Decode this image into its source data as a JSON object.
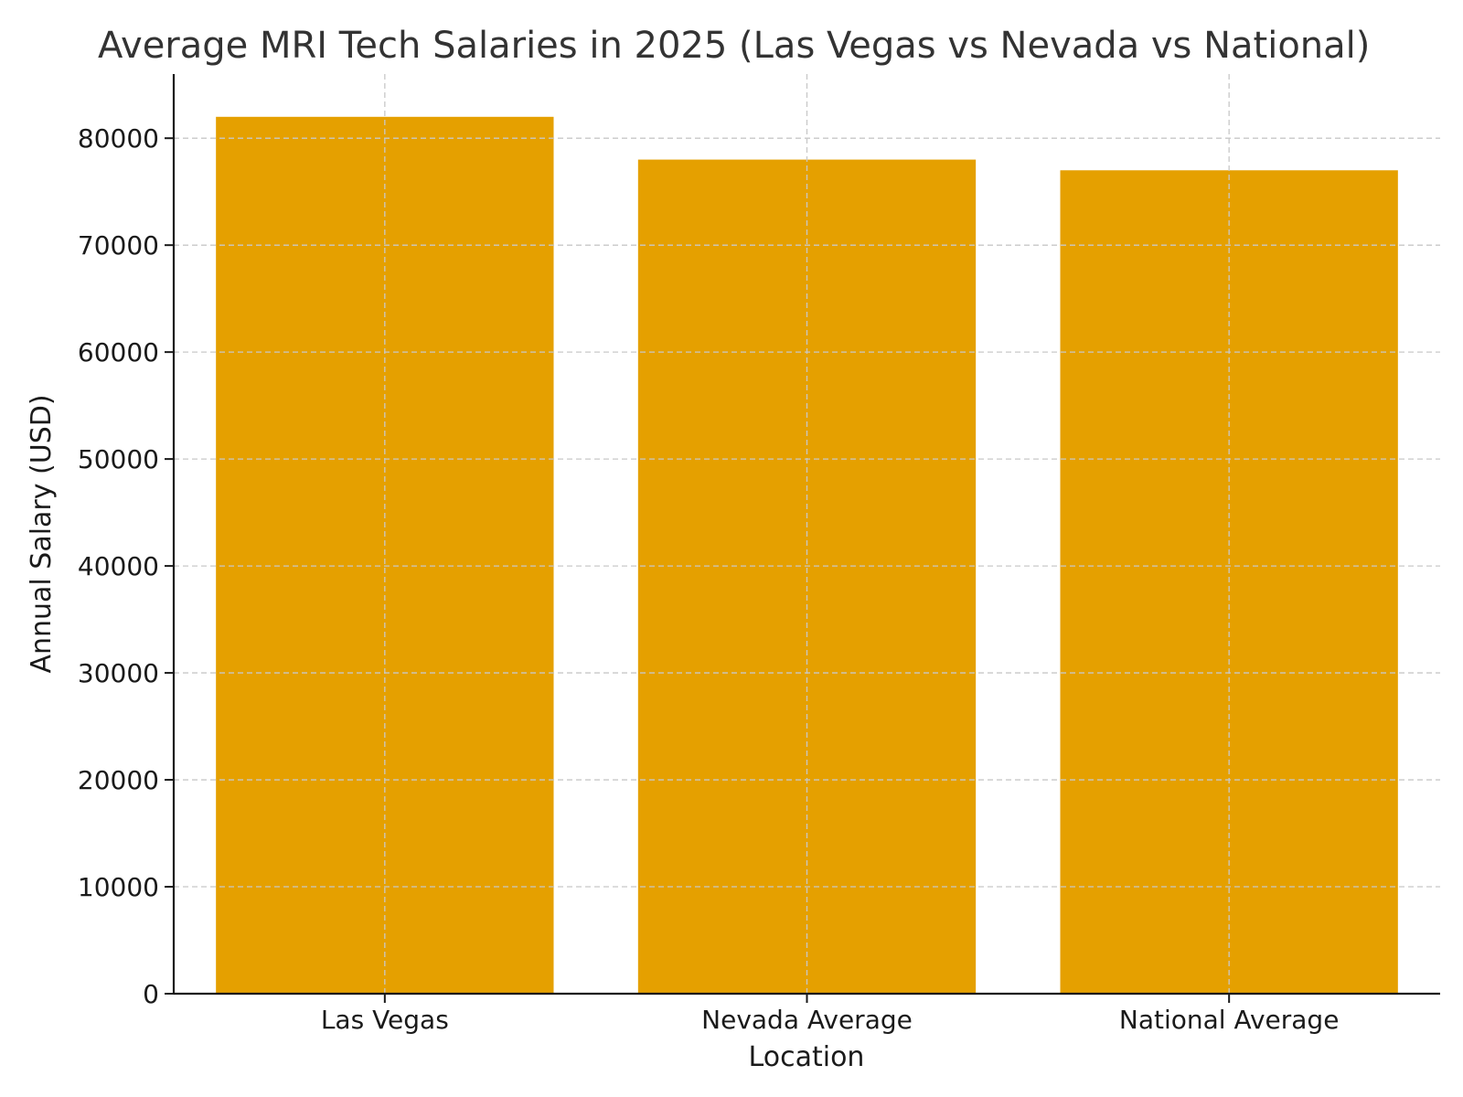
{
  "chart_data": {
    "type": "bar",
    "title": "Average MRI Tech Salaries in 2025 (Las Vegas vs Nevada vs National)",
    "xlabel": "Location",
    "ylabel": "Annual Salary (USD)",
    "categories": [
      "Las Vegas",
      "Nevada Average",
      "National Average"
    ],
    "values": [
      82000,
      78000,
      77000
    ],
    "ylim": [
      0,
      86000
    ],
    "yticks": [
      0,
      10000,
      20000,
      30000,
      40000,
      50000,
      60000,
      70000,
      80000
    ],
    "grid": true,
    "legend": "none",
    "bar_color": "#E5A000"
  }
}
